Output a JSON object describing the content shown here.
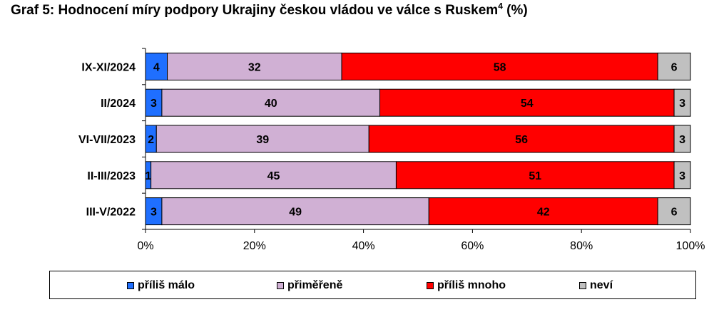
{
  "title": {
    "text": "Graf 5: Hodnocení míry podpory Ukrajiny českou vládou ve válce s Ruskem",
    "superscript": "4",
    "suffix": " (%)"
  },
  "chart_data": {
    "type": "bar",
    "orientation": "horizontal",
    "stacked": true,
    "percent_stacked": true,
    "categories": [
      "IX-XI/2024",
      "II/2024",
      "VI-VII/2023",
      "II-III/2023",
      "III-V/2022"
    ],
    "series": [
      {
        "name": "příliš málo",
        "color": "#1f6fff",
        "values": [
          4,
          3,
          2,
          1,
          3
        ]
      },
      {
        "name": "přiměřeně",
        "color": "#d0b0d4",
        "values": [
          32,
          40,
          39,
          45,
          49
        ]
      },
      {
        "name": "příliš mnoho",
        "color": "#ff0000",
        "values": [
          58,
          54,
          56,
          51,
          42
        ]
      },
      {
        "name": "neví",
        "color": "#c0c0c0",
        "values": [
          6,
          3,
          3,
          3,
          6
        ]
      }
    ],
    "x_ticks": [
      "0%",
      "20%",
      "40%",
      "60%",
      "80%",
      "100%"
    ],
    "xlim": [
      0,
      100
    ],
    "grid": false,
    "legend_position": "bottom"
  }
}
